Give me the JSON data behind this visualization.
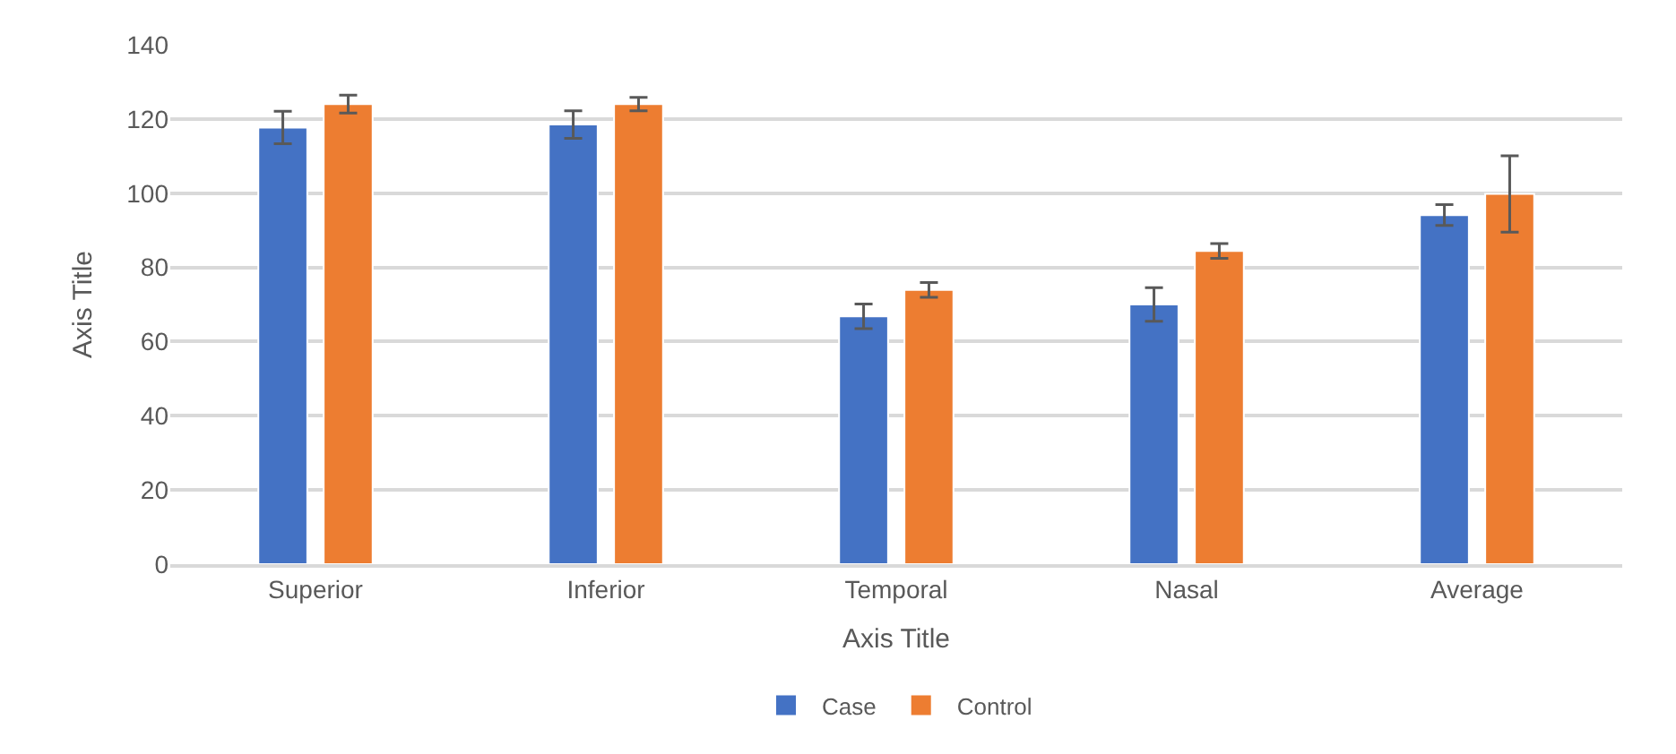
{
  "chart_data": {
    "type": "bar",
    "xlabel": "Axis Title",
    "ylabel": "Axis Title",
    "categories": [
      "Superior",
      "Inferior",
      "Temporal",
      "Nasal",
      "Average"
    ],
    "series": [
      {
        "name": "Case",
        "color": "#4472c4",
        "values": [
          117.7,
          118.5,
          66.8,
          70,
          94.1
        ],
        "errors": [
          4.4,
          3.7,
          3.3,
          4.5,
          2.8
        ]
      },
      {
        "name": "Control",
        "color": "#ed7d31",
        "values": [
          124,
          124,
          73.9,
          84.4,
          99.8
        ],
        "errors": [
          2.4,
          1.8,
          2,
          2,
          10.3
        ]
      }
    ],
    "ylim": [
      0,
      140
    ],
    "yticks": [
      0,
      20,
      40,
      60,
      80,
      100,
      120,
      140
    ],
    "grid": "y",
    "legend": "bottom"
  }
}
